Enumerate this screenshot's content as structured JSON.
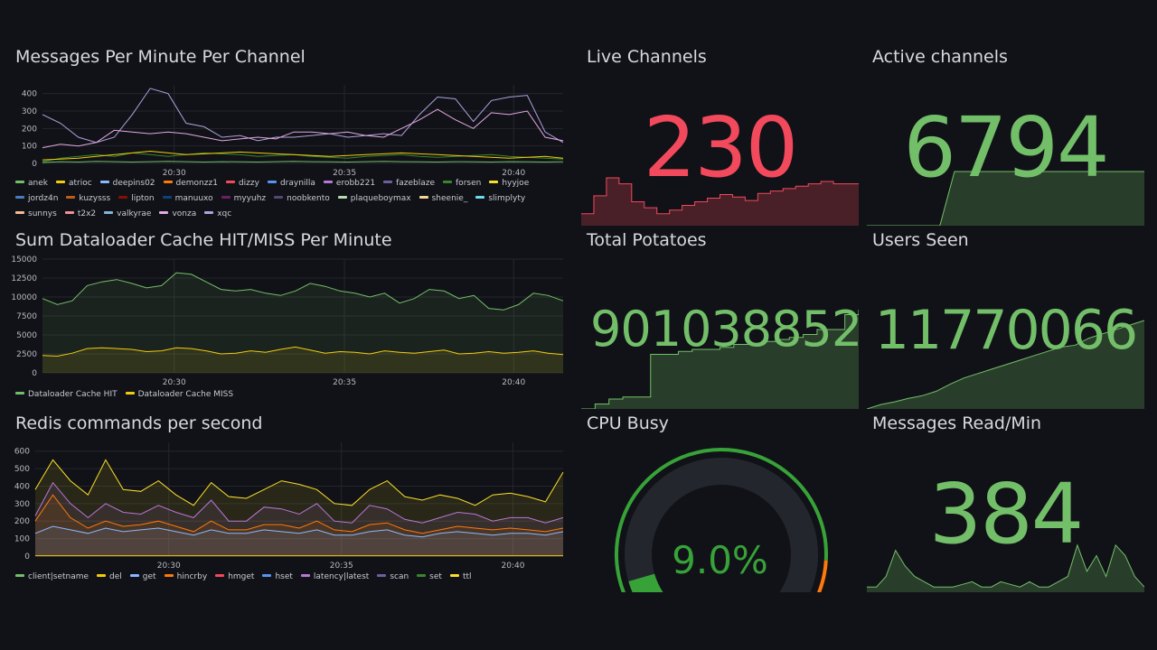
{
  "dashboard": {
    "colors": {
      "background": "#111217",
      "green": "#73bf69",
      "red": "#f2495c",
      "gauge_green": "#37a238"
    }
  },
  "messages_panel": {
    "title": "Messages Per Minute Per Channel",
    "legend": [
      {
        "name": "anek",
        "color": "#73bf69"
      },
      {
        "name": "atrioc",
        "color": "#f2cc0c"
      },
      {
        "name": "deepins02",
        "color": "#8ab8ff"
      },
      {
        "name": "demonzz1",
        "color": "#ff780a"
      },
      {
        "name": "dizzy",
        "color": "#f2495c"
      },
      {
        "name": "draynilla",
        "color": "#5794f2"
      },
      {
        "name": "erobb221",
        "color": "#b877d9"
      },
      {
        "name": "fazeblaze",
        "color": "#705da0"
      },
      {
        "name": "forsen",
        "color": "#37872d"
      },
      {
        "name": "hyyjoe",
        "color": "#fade2a"
      },
      {
        "name": "jordz4n",
        "color": "#447ebc"
      },
      {
        "name": "kuzysss",
        "color": "#c15c17"
      },
      {
        "name": "lipton",
        "color": "#890f02"
      },
      {
        "name": "manuuxo",
        "color": "#0a437c"
      },
      {
        "name": "myyuhz",
        "color": "#6d1f62"
      },
      {
        "name": "noobkento",
        "color": "#584477"
      },
      {
        "name": "plaqueboymax",
        "color": "#b7dbab"
      },
      {
        "name": "sheenie_",
        "color": "#f4d598"
      },
      {
        "name": "slimplyty",
        "color": "#70dbed"
      },
      {
        "name": "sunnys",
        "color": "#f9ba8f"
      },
      {
        "name": "t2x2",
        "color": "#f29191"
      },
      {
        "name": "valkyrae",
        "color": "#82b5d8"
      },
      {
        "name": "vonza",
        "color": "#e5a8e2"
      },
      {
        "name": "xqc",
        "color": "#aea2e0"
      }
    ]
  },
  "dataloader_panel": {
    "title": "Sum Dataloader Cache HIT/MISS Per Minute",
    "legend": [
      {
        "name": "Dataloader Cache HIT",
        "color": "#73bf69"
      },
      {
        "name": "Dataloader Cache MISS",
        "color": "#f2cc0c"
      }
    ]
  },
  "redis_panel": {
    "title": "Redis commands per second",
    "legend": [
      {
        "name": "client|setname",
        "color": "#73bf69"
      },
      {
        "name": "del",
        "color": "#f2cc0c"
      },
      {
        "name": "get",
        "color": "#8ab8ff"
      },
      {
        "name": "hincrby",
        "color": "#ff780a"
      },
      {
        "name": "hmget",
        "color": "#f2495c"
      },
      {
        "name": "hset",
        "color": "#5794f2"
      },
      {
        "name": "latency|latest",
        "color": "#b877d9"
      },
      {
        "name": "scan",
        "color": "#705da0"
      },
      {
        "name": "set",
        "color": "#37872d"
      },
      {
        "name": "ttl",
        "color": "#fade2a"
      }
    ]
  },
  "stats": {
    "live_channels": {
      "title": "Live Channels",
      "value": "230",
      "color": "#f2495c"
    },
    "active_channels": {
      "title": "Active channels",
      "value": "6794",
      "color": "#73bf69"
    },
    "total_potatoes": {
      "title": "Total Potatoes",
      "value": "901038852",
      "color": "#73bf69"
    },
    "users_seen": {
      "title": "Users Seen",
      "value": "11770066",
      "color": "#73bf69"
    },
    "cpu_busy": {
      "title": "CPU Busy",
      "value": "9.0%",
      "percent": 9.0,
      "color": "#37a238"
    },
    "messages_read": {
      "title": "Messages Read/Min",
      "value": "384",
      "color": "#73bf69"
    }
  },
  "chart_data": [
    {
      "type": "line",
      "title": "Messages Per Minute Per Channel",
      "x_ticks": [
        "20:30",
        "20:35",
        "20:40"
      ],
      "x": [
        "20:27",
        "20:27:30",
        "20:28",
        "20:28:30",
        "20:29",
        "20:29:30",
        "20:30",
        "20:30:30",
        "20:31",
        "20:31:30",
        "20:32",
        "20:32:30",
        "20:33",
        "20:33:30",
        "20:34",
        "20:34:30",
        "20:35",
        "20:35:30",
        "20:36",
        "20:36:30",
        "20:37",
        "20:37:30",
        "20:38",
        "20:38:30",
        "20:39",
        "20:39:30",
        "20:40",
        "20:40:30",
        "20:41",
        "20:41:30"
      ],
      "y_ticks": [
        0,
        100,
        200,
        300,
        400
      ],
      "ylim": [
        0,
        450
      ],
      "series": [
        {
          "name": "xqc",
          "color": "#aea2e0",
          "values": [
            280,
            230,
            150,
            120,
            150,
            280,
            430,
            400,
            230,
            210,
            150,
            160,
            130,
            150,
            150,
            160,
            170,
            150,
            160,
            170,
            160,
            280,
            380,
            370,
            240,
            360,
            380,
            390,
            180,
            120
          ]
        },
        {
          "name": "vonza",
          "color": "#e5a8e2",
          "values": [
            90,
            110,
            100,
            120,
            190,
            180,
            170,
            180,
            170,
            150,
            130,
            140,
            150,
            140,
            180,
            180,
            170,
            180,
            160,
            150,
            200,
            250,
            310,
            250,
            200,
            290,
            280,
            300,
            150,
            130
          ]
        },
        {
          "name": "forsen",
          "color": "#37872d",
          "values": [
            10,
            30,
            40,
            50,
            40,
            60,
            50,
            40,
            50,
            60,
            55,
            50,
            40,
            45,
            50,
            40,
            35,
            30,
            40,
            45,
            50,
            40,
            35,
            40,
            45,
            50,
            40,
            35,
            30,
            25
          ]
        },
        {
          "name": "atrioc",
          "color": "#f2cc0c",
          "values": [
            20,
            25,
            30,
            40,
            50,
            60,
            70,
            60,
            50,
            55,
            60,
            65,
            60,
            55,
            50,
            45,
            40,
            45,
            50,
            55,
            60,
            55,
            50,
            45,
            40,
            35,
            30,
            35,
            40,
            30
          ]
        },
        {
          "name": "anek",
          "color": "#73bf69",
          "values": [
            5,
            10,
            8,
            12,
            10,
            8,
            10,
            12,
            10,
            8,
            10,
            9,
            8,
            10,
            12,
            10,
            9,
            8,
            10,
            12,
            10,
            9,
            8,
            10,
            9,
            8,
            10,
            9,
            8,
            10
          ]
        }
      ]
    },
    {
      "type": "area",
      "title": "Sum Dataloader Cache HIT/MISS Per Minute",
      "x_ticks": [
        "20:30",
        "20:35",
        "20:40"
      ],
      "y_ticks": [
        0,
        2500,
        5000,
        7500,
        10000,
        12500,
        15000
      ],
      "ylim": [
        0,
        15000
      ],
      "series": [
        {
          "name": "Dataloader Cache HIT",
          "color": "#73bf69",
          "values": [
            9800,
            9000,
            9500,
            11500,
            12000,
            12300,
            11800,
            11200,
            11500,
            13200,
            13000,
            12000,
            11000,
            10800,
            11000,
            10500,
            10200,
            10800,
            11800,
            11400,
            10800,
            10500,
            10000,
            10500,
            9200,
            9800,
            11000,
            10800,
            9800,
            10200,
            8500,
            8300,
            9000,
            10500,
            10200,
            9500
          ]
        },
        {
          "name": "Dataloader Cache MISS",
          "color": "#f2cc0c",
          "values": [
            2300,
            2200,
            2600,
            3200,
            3300,
            3200,
            3100,
            2800,
            2900,
            3300,
            3200,
            2900,
            2500,
            2600,
            2900,
            2700,
            3100,
            3400,
            3000,
            2600,
            2800,
            2700,
            2500,
            2900,
            2700,
            2600,
            2800,
            3000,
            2500,
            2600,
            2800,
            2600,
            2700,
            2900,
            2600,
            2400
          ]
        }
      ]
    },
    {
      "type": "area",
      "title": "Redis commands per second",
      "x_ticks": [
        "20:30",
        "20:35",
        "20:40"
      ],
      "y_ticks": [
        0,
        100,
        200,
        300,
        400,
        500,
        600
      ],
      "ylim": [
        0,
        650
      ],
      "series": [
        {
          "name": "ttl",
          "color": "#fade2a",
          "values": [
            380,
            550,
            430,
            350,
            550,
            380,
            370,
            430,
            350,
            290,
            420,
            340,
            330,
            380,
            430,
            410,
            380,
            300,
            290,
            380,
            430,
            340,
            320,
            350,
            330,
            290,
            350,
            360,
            340,
            310,
            480
          ]
        },
        {
          "name": "latency|latest",
          "color": "#b877d9",
          "values": [
            230,
            420,
            300,
            220,
            300,
            250,
            240,
            290,
            250,
            220,
            320,
            200,
            200,
            280,
            270,
            240,
            300,
            200,
            190,
            290,
            270,
            210,
            190,
            220,
            250,
            240,
            200,
            220,
            220,
            190,
            220
          ]
        },
        {
          "name": "hincrby",
          "color": "#ff780a",
          "values": [
            200,
            350,
            220,
            160,
            200,
            170,
            180,
            200,
            170,
            140,
            200,
            150,
            150,
            180,
            180,
            160,
            200,
            150,
            140,
            180,
            190,
            150,
            130,
            150,
            170,
            160,
            150,
            160,
            150,
            140,
            160
          ]
        },
        {
          "name": "get",
          "color": "#8ab8ff",
          "values": [
            130,
            170,
            150,
            130,
            160,
            140,
            150,
            160,
            140,
            120,
            150,
            130,
            130,
            150,
            140,
            130,
            150,
            120,
            120,
            140,
            150,
            120,
            110,
            130,
            140,
            130,
            120,
            130,
            130,
            120,
            140
          ]
        },
        {
          "name": "del",
          "color": "#f2cc0c",
          "values": [
            2,
            2,
            2,
            2,
            2,
            2,
            2,
            2,
            2,
            2,
            2,
            2,
            2,
            2,
            2,
            2,
            2,
            2,
            2,
            2,
            2,
            2,
            2,
            2,
            2,
            2,
            2,
            2,
            2,
            2,
            2
          ]
        }
      ]
    }
  ],
  "sparklines": {
    "live_channels": [
      205,
      220,
      235,
      230,
      215,
      210,
      205,
      208,
      212,
      215,
      218,
      221,
      219,
      216,
      222,
      224,
      226,
      228,
      230,
      232,
      230,
      230,
      230
    ],
    "active_channels": [
      0,
      0,
      0,
      0,
      0,
      0,
      6794,
      6794,
      6794,
      6794,
      6794,
      6794,
      6794,
      6794,
      6794,
      6794,
      6794,
      6794,
      6794,
      6794
    ],
    "total_potatoes": [
      0,
      0.05,
      0.1,
      0.12,
      0.12,
      0.55,
      0.55,
      0.58,
      0.6,
      0.6,
      0.62,
      0.65,
      0.65,
      0.68,
      0.7,
      0.72,
      0.75,
      0.8,
      0.8,
      0.95,
      1
    ],
    "users_seen": [
      0,
      0.05,
      0.08,
      0.12,
      0.15,
      0.2,
      0.28,
      0.35,
      0.4,
      0.45,
      0.5,
      0.55,
      0.6,
      0.65,
      0.7,
      0.72,
      0.8,
      0.85,
      0.9,
      0.95,
      1
    ],
    "messages_read": [
      0.1,
      0.1,
      0.3,
      0.8,
      0.5,
      0.3,
      0.2,
      0.1,
      0.1,
      0.1,
      0.15,
      0.2,
      0.1,
      0.1,
      0.2,
      0.15,
      0.1,
      0.2,
      0.1,
      0.1,
      0.2,
      0.3,
      0.9,
      0.4,
      0.7,
      0.3,
      0.9,
      0.7,
      0.3,
      0.1
    ]
  }
}
